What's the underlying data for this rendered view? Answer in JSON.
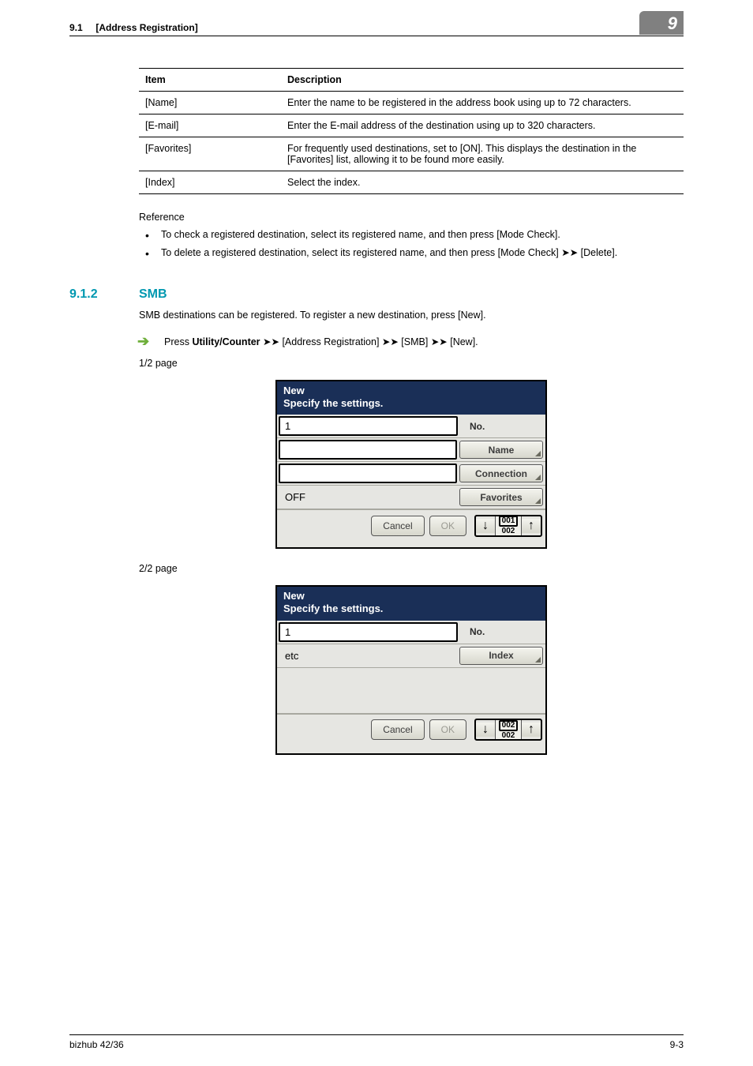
{
  "header": {
    "section_number": "9.1",
    "section_title": "[Address Registration]",
    "chapter_badge": "9"
  },
  "table": {
    "columns": [
      "Item",
      "Description"
    ],
    "rows": [
      [
        "[Name]",
        "Enter the name to be registered in the address book using up to 72 characters."
      ],
      [
        "[E-mail]",
        "Enter the E-mail address of the destination using up to 320 characters."
      ],
      [
        "[Favorites]",
        "For frequently used destinations, set to [ON]. This displays the destination in the [Favorites] list, allowing it to be found more easily."
      ],
      [
        "[Index]",
        "Select the index."
      ]
    ]
  },
  "reference": {
    "label": "Reference",
    "items": [
      "To check a registered destination, select its registered name, and then press [Mode Check].",
      "To delete a registered destination, select its registered name, and then press [Mode Check] ➤➤ [Delete]."
    ]
  },
  "subsection": {
    "number": "9.1.2",
    "title": "SMB",
    "intro": "SMB destinations can be registered. To register a new destination, press [New].",
    "path_prefix": "Press ",
    "path_bold": "Utility/Counter",
    "path_rest": " ➤➤ [Address Registration] ➤➤ [SMB] ➤➤ [New]."
  },
  "screens": {
    "p1_label": "1/2 page",
    "p2_label": "2/2 page",
    "dialog_title_l1": "New",
    "dialog_title_l2": "Specify the settings.",
    "screen1": {
      "no_value": "1",
      "off_value": "OFF",
      "no_label": "No.",
      "name_btn": "Name",
      "connection_btn": "Connection",
      "favorites_btn": "Favorites",
      "cancel": "Cancel",
      "ok": "OK",
      "page_top": "001",
      "page_bot": "002"
    },
    "screen2": {
      "no_value": "1",
      "etc_value": "etc",
      "no_label": "No.",
      "index_btn": "Index",
      "cancel": "Cancel",
      "ok": "OK",
      "page_top": "002",
      "page_bot": "002"
    }
  },
  "footer": {
    "left": "bizhub 42/36",
    "right": "9-3"
  },
  "colors": {
    "accent": "#0098b0",
    "arrow": "#6faf3b",
    "dialog_header": "#1a2f57",
    "badge": "#808080"
  }
}
